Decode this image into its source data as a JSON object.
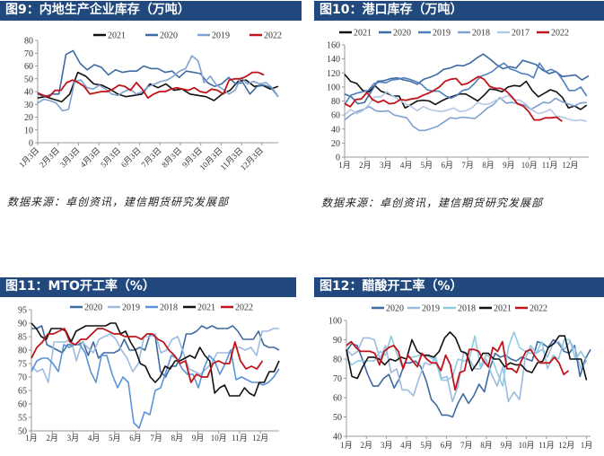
{
  "panels": [
    {
      "title": "图9：内地生产企业库存（万吨）",
      "source": "数据来源：卓创资讯，建信期货研究发展部"
    },
    {
      "title": "图10：港口库存（万吨）",
      "source": "数据来源：卓创资讯，建信期货研究发展部"
    },
    {
      "title": "图11：MTO开工率（%）"
    },
    {
      "title": "图12：醋酸开工率（%）"
    }
  ],
  "chart_data": [
    {
      "type": "line",
      "title": "内地生产企业库存（万吨）",
      "ylim": [
        0,
        80
      ],
      "yticks": [
        0,
        10,
        20,
        30,
        40,
        50,
        60,
        70,
        80
      ],
      "xlim": [
        0,
        11.8
      ],
      "xtick_labels": [
        "1月3日",
        "2月3日",
        "3月3日",
        "4月3日",
        "5月3日",
        "6月3日",
        "7月3日",
        "8月3日",
        "9月3日",
        "10月3日",
        "11月3日",
        "12月3日"
      ],
      "series": [
        {
          "name": "2021",
          "color": "#111111",
          "x_end": 11.8,
          "values": [
            35,
            36,
            34,
            32,
            38,
            55,
            52,
            46,
            45,
            42,
            38,
            36,
            37,
            38,
            46,
            43,
            46,
            41,
            42,
            38,
            37,
            36,
            33,
            38,
            41,
            48,
            49,
            44,
            45,
            42,
            44
          ]
        },
        {
          "name": "2020",
          "color": "#3d6aa1",
          "x_end": 11.8,
          "values": [
            38,
            36,
            38,
            38,
            69,
            72,
            62,
            57,
            61,
            59,
            53,
            57,
            55,
            56,
            56,
            60,
            58,
            58,
            55,
            56,
            51,
            56,
            55,
            54,
            47,
            44,
            46,
            51,
            46,
            47,
            38,
            44,
            45,
            43,
            36
          ]
        },
        {
          "name": "2019",
          "color": "#7ea1cf",
          "x_end": 11.8,
          "values": [
            31,
            34,
            33,
            31,
            25,
            26,
            48,
            49,
            43,
            42,
            45,
            42,
            38,
            37,
            40,
            42,
            38,
            40,
            44,
            46,
            48,
            49,
            52,
            56,
            58,
            68,
            64,
            47,
            52,
            45,
            42,
            38,
            41,
            51,
            46,
            48,
            46,
            47,
            43,
            36
          ]
        },
        {
          "name": "2022",
          "color": "#c0141b",
          "x_end": 11.1,
          "values": [
            39,
            37,
            36,
            41,
            41,
            47,
            49,
            47,
            44,
            38,
            39,
            40,
            40,
            42,
            45,
            44,
            41,
            47,
            42,
            35,
            38,
            40,
            40,
            42,
            43,
            42,
            41,
            43,
            40,
            39,
            42,
            41,
            38,
            49,
            50,
            50,
            52,
            55,
            55,
            53
          ]
        }
      ]
    },
    {
      "type": "line",
      "title": "港口库存（万吨）",
      "ylim": [
        0,
        160
      ],
      "yticks": [
        0,
        20,
        40,
        60,
        80,
        100,
        120,
        140,
        160
      ],
      "xlim": [
        0,
        11.9
      ],
      "xtick_labels": [
        "1月",
        "2月",
        "3月",
        "4月",
        "5月",
        "6月",
        "7月",
        "8月",
        "9月",
        "10月",
        "11月",
        "12月"
      ],
      "series": [
        {
          "name": "2021",
          "color": "#111111",
          "x_end": 11.8,
          "values": [
            118,
            108,
            105,
            95,
            93,
            102,
            94,
            91,
            87,
            87,
            70,
            75,
            80,
            81,
            80,
            75,
            80,
            84,
            87,
            90,
            90,
            85,
            80,
            88,
            97,
            96,
            93,
            100,
            102,
            101,
            108,
            95,
            86,
            91,
            96,
            93,
            85,
            70,
            73,
            68,
            74
          ]
        },
        {
          "name": "2020",
          "color": "#3d6aa1",
          "x_end": 11.9,
          "values": [
            90,
            86,
            76,
            78,
            93,
            108,
            109,
            112,
            113,
            110,
            108,
            104,
            111,
            114,
            118,
            125,
            127,
            131,
            130,
            134,
            141,
            147,
            140,
            132,
            126,
            129,
            127,
            138,
            135,
            132,
            124,
            119,
            122,
            115,
            116,
            117,
            110,
            116
          ]
        },
        {
          "name": "2019",
          "color": "#4f7fbf",
          "x_end": 11.8,
          "values": [
            75,
            88,
            91,
            93,
            95,
            105,
            107,
            106,
            110,
            111,
            113,
            111,
            108,
            104,
            96,
            94,
            94,
            88,
            84,
            88,
            95,
            97,
            105,
            115,
            118,
            122,
            129,
            134,
            126,
            123,
            119,
            118,
            113,
            134,
            122,
            125,
            121,
            109,
            95,
            95,
            100,
            87
          ]
        },
        {
          "name": "2018",
          "color": "#7ea1cf",
          "x_end": 11.8,
          "values": [
            53,
            60,
            65,
            68,
            72,
            66,
            65,
            66,
            60,
            58,
            56,
            44,
            38,
            38,
            41,
            44,
            50,
            56,
            55,
            57,
            56,
            55,
            62,
            70,
            75,
            85,
            77,
            78,
            76,
            74,
            68,
            73,
            78,
            77,
            84,
            79,
            76,
            73,
            77,
            78
          ]
        },
        {
          "name": "2017",
          "color": "#b4c8e6",
          "x_end": 11.8,
          "values": [
            60,
            68,
            62,
            66,
            75,
            86,
            86,
            93,
            87,
            82,
            76,
            72,
            66,
            72,
            68,
            66,
            65,
            67,
            70,
            65,
            66,
            70,
            78,
            75,
            76,
            81,
            84,
            88,
            82,
            81,
            75,
            67,
            62,
            64,
            68,
            58,
            57,
            54,
            52,
            53,
            51
          ]
        },
        {
          "name": "2022",
          "color": "#c0141b",
          "x_end": 10.6,
          "values": [
            76,
            72,
            82,
            83,
            92,
            82,
            78,
            81,
            76,
            77,
            82,
            81,
            83,
            84,
            88,
            91,
            95,
            100,
            108,
            111,
            112,
            103,
            105,
            110,
            115,
            111,
            101,
            98,
            98,
            94,
            86,
            76,
            73,
            65,
            53,
            53,
            56,
            56,
            57,
            51
          ]
        }
      ]
    },
    {
      "type": "line",
      "title": "MTO开工率（%）",
      "ylim": [
        50,
        95
      ],
      "yticks": [
        50,
        55,
        60,
        65,
        70,
        75,
        80,
        85,
        90,
        95
      ],
      "xlim": [
        0,
        11.9
      ],
      "xtick_labels": [
        "1月",
        "2月",
        "3月",
        "4月",
        "5月",
        "6月",
        "7月",
        "8月",
        "9月",
        "10月",
        "11月",
        "12月"
      ],
      "series": [
        {
          "name": "2020",
          "color": "#3d6aa1",
          "x_end": 11.9,
          "values": [
            88,
            88,
            89,
            82,
            81,
            80,
            79,
            82,
            82,
            82,
            83,
            78,
            83,
            77,
            79,
            79,
            79,
            80,
            84,
            80,
            80,
            81,
            80,
            86,
            85,
            72,
            70,
            74,
            74,
            78,
            86,
            86,
            87,
            89,
            88,
            89,
            88,
            88,
            88,
            89,
            87,
            84,
            84,
            84,
            87,
            82,
            81,
            81,
            80
          ]
        },
        {
          "name": "2019",
          "color": "#9dbbe0",
          "x_end": 11.9,
          "values": [
            74,
            72,
            73,
            68,
            83,
            83,
            83,
            84,
            76,
            83,
            81,
            79,
            84,
            85,
            86,
            84,
            80,
            77,
            72,
            75,
            85,
            85,
            86,
            79,
            80,
            84,
            85,
            79,
            73,
            72,
            71,
            73,
            75,
            79,
            79,
            79,
            81,
            81,
            80,
            81,
            78,
            87,
            87,
            88,
            88
          ]
        },
        {
          "name": "2018",
          "color": "#5a93d6",
          "x_end": 11.9,
          "values": [
            72,
            76,
            77,
            77,
            75,
            72,
            82,
            81,
            82,
            82,
            79,
            72,
            68,
            78,
            78,
            71,
            66,
            70,
            68,
            53,
            51,
            57,
            56,
            65,
            66,
            72,
            78,
            77,
            73,
            71,
            71,
            66,
            73,
            78,
            76,
            71,
            75,
            80,
            69,
            70,
            69,
            68,
            68,
            67,
            68,
            70,
            73
          ]
        },
        {
          "name": "2021",
          "color": "#111111",
          "x_end": 11.9,
          "values": [
            90,
            88,
            85,
            84,
            88,
            88,
            88,
            87,
            83,
            87,
            88,
            89,
            89,
            89,
            89,
            89,
            90,
            90,
            86,
            87,
            83,
            80,
            75,
            74,
            70,
            68,
            70,
            74,
            73,
            76,
            76,
            77,
            78,
            77,
            81,
            78,
            76,
            64,
            66,
            67,
            63,
            63,
            63,
            66,
            64,
            63,
            68,
            68,
            72,
            72,
            76
          ]
        },
        {
          "name": "2022",
          "color": "#c0141b",
          "x_end": 11.1,
          "values": [
            77,
            81,
            83,
            86,
            86,
            87,
            88,
            83,
            82,
            84,
            84,
            86,
            88,
            88,
            87,
            86,
            86,
            85,
            85,
            85,
            84,
            86,
            86,
            84,
            83,
            80,
            78,
            75,
            76,
            68,
            71,
            70,
            70,
            75,
            76,
            75,
            75,
            83,
            76,
            73,
            74,
            73,
            76
          ]
        }
      ]
    },
    {
      "type": "line",
      "title": "醋酸开工率（%）",
      "ylim": [
        40,
        100
      ],
      "yticks": [
        40,
        50,
        60,
        70,
        80,
        90,
        100
      ],
      "xlim": [
        0,
        12.2
      ],
      "xtick_labels": [
        "1月",
        "2月",
        "3月",
        "4月",
        "5月",
        "6月",
        "7月",
        "8月",
        "9月",
        "10月",
        "11月",
        "12月",
        "1月"
      ],
      "series": [
        {
          "name": "2020",
          "color": "#3d6aa1",
          "x_end": 12.2,
          "values": [
            84,
            88,
            87,
            80,
            72,
            66,
            66,
            70,
            72,
            65,
            70,
            78,
            78,
            79,
            76,
            69,
            59,
            56,
            51,
            51,
            50,
            57,
            62,
            57,
            61,
            67,
            63,
            75,
            83,
            81,
            82,
            80,
            79,
            81,
            80,
            79,
            89,
            88,
            86,
            90,
            88,
            84,
            83,
            87,
            71,
            80,
            85
          ]
        },
        {
          "name": "2019",
          "color": "#9dbbe0",
          "x_end": 12.0,
          "values": [
            85,
            82,
            84,
            91,
            91,
            90,
            80,
            87,
            73,
            75,
            64,
            64,
            61,
            70,
            78,
            77,
            81,
            70,
            71,
            58,
            66,
            84,
            80,
            75,
            75,
            80,
            72,
            66,
            76,
            58,
            63,
            59,
            80,
            87,
            83,
            85,
            81,
            88,
            89,
            85,
            89,
            85,
            75,
            79
          ]
        },
        {
          "name": "2018",
          "color": "#8fcbe0",
          "x_end": 12.0,
          "values": [
            80,
            77,
            79,
            79,
            79,
            79,
            84,
            82,
            92,
            83,
            76,
            81,
            81,
            82,
            82,
            81,
            79,
            69,
            69,
            71,
            80,
            79,
            80,
            92,
            76,
            82,
            81,
            73,
            66,
            86,
            94,
            86,
            84,
            83,
            83,
            89,
            75,
            82,
            80,
            90,
            90,
            80,
            84,
            79
          ]
        },
        {
          "name": "2021",
          "color": "#111111",
          "x_end": 12.0,
          "values": [
            85,
            71,
            70,
            76,
            81,
            81,
            80,
            77,
            80,
            79,
            81,
            80,
            90,
            84,
            82,
            82,
            81,
            84,
            91,
            94,
            91,
            84,
            83,
            74,
            78,
            83,
            83,
            80,
            80,
            76,
            78,
            77,
            77,
            74,
            73,
            78,
            79,
            86,
            88,
            92,
            92,
            80,
            80,
            80,
            69
          ]
        },
        {
          "name": "2022",
          "color": "#c0141b",
          "x_end": 11.1,
          "values": [
            87,
            89,
            86,
            84,
            84,
            84,
            83,
            77,
            84,
            86,
            87,
            84,
            75,
            82,
            79,
            76,
            83,
            80,
            78,
            78,
            74,
            82,
            77,
            64,
            73,
            74,
            85,
            85,
            84,
            79,
            76,
            86,
            84,
            89,
            75,
            75,
            73,
            79,
            84,
            85,
            81,
            78,
            78,
            78,
            81,
            78,
            72,
            74
          ]
        }
      ]
    }
  ]
}
